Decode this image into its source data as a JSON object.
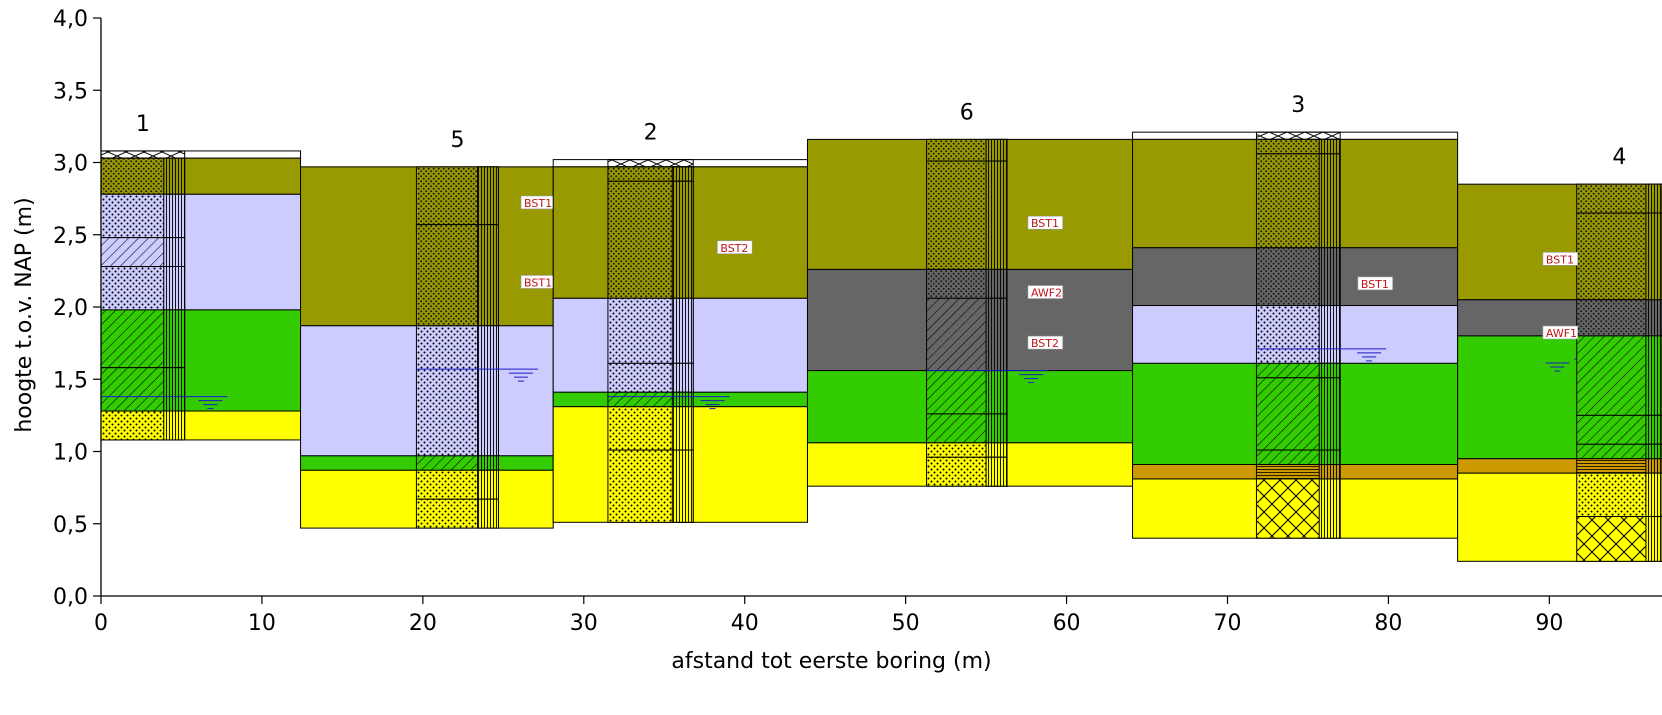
{
  "figure": {
    "xlabel": "afstand tot eerste boring (m)",
    "ylabel": "hoogte t.o.v. NAP (m)",
    "x_ticks": [
      {
        "v": 0,
        "label": "0"
      },
      {
        "v": 10,
        "label": "10"
      },
      {
        "v": 20,
        "label": "20"
      },
      {
        "v": 30,
        "label": "30"
      },
      {
        "v": 40,
        "label": "40"
      },
      {
        "v": 50,
        "label": "50"
      },
      {
        "v": 60,
        "label": "60"
      },
      {
        "v": 70,
        "label": "70"
      },
      {
        "v": 80,
        "label": "80"
      },
      {
        "v": 90,
        "label": "90"
      }
    ],
    "y_ticks": [
      {
        "v": 0.0,
        "label": "0,0"
      },
      {
        "v": 0.5,
        "label": "0,5"
      },
      {
        "v": 1.0,
        "label": "1,0"
      },
      {
        "v": 1.5,
        "label": "1,5"
      },
      {
        "v": 2.0,
        "label": "2,0"
      },
      {
        "v": 2.5,
        "label": "2,5"
      },
      {
        "v": 3.0,
        "label": "3,0"
      },
      {
        "v": 3.5,
        "label": "3,5"
      },
      {
        "v": 4.0,
        "label": "4,0"
      }
    ],
    "x_range": [
      0,
      97
    ],
    "y_range": [
      0,
      4.0
    ]
  },
  "colors": {
    "olive": "#999900",
    "lavender": "#ccccff",
    "green": "#33cc00",
    "yellow": "#ffff00",
    "gray": "#666666",
    "ochre": "#cc9900",
    "white": "#ffffff",
    "water": "#1c1cc8",
    "tag": "#c0161b"
  },
  "boreholes": [
    {
      "label": "1",
      "x0": 0,
      "x1": 12.4,
      "col_x0": 0,
      "col_x1": 5.2,
      "top": 3.08,
      "bottom": 1.08,
      "ground_ticked": true,
      "layers": [
        {
          "top": 3.08,
          "bottom": 3.03,
          "color": "white"
        },
        {
          "top": 3.03,
          "bottom": 2.78,
          "color": "olive"
        },
        {
          "top": 2.78,
          "bottom": 1.98,
          "color": "lavender"
        },
        {
          "top": 1.98,
          "bottom": 1.28,
          "color": "green"
        },
        {
          "top": 1.28,
          "bottom": 1.08,
          "color": "yellow"
        }
      ],
      "column_layers": [
        {
          "top": 3.03,
          "bottom": 2.78,
          "color": "olive",
          "pattern": "dots-dark"
        },
        {
          "top": 2.78,
          "bottom": 2.48,
          "color": "lavender",
          "pattern": "dots"
        },
        {
          "top": 2.48,
          "bottom": 2.28,
          "color": "lavender",
          "pattern": "hatch"
        },
        {
          "top": 2.28,
          "bottom": 1.98,
          "color": "lavender",
          "pattern": "dots"
        },
        {
          "top": 1.98,
          "bottom": 1.58,
          "color": "green",
          "pattern": "hatch"
        },
        {
          "top": 1.58,
          "bottom": 1.28,
          "color": "green",
          "pattern": "hatch"
        },
        {
          "top": 1.28,
          "bottom": 1.08,
          "color": "yellow",
          "pattern": "dots"
        }
      ],
      "strip_x": [
        3.9,
        5.2
      ],
      "water_level": 1.38,
      "water_x": 6.8,
      "tags": []
    },
    {
      "label": "5",
      "x0": 12.4,
      "x1": 28.1,
      "col_x0": 19.6,
      "col_x1": 24.7,
      "top": 2.97,
      "bottom": 0.47,
      "ground_ticked": false,
      "layers": [
        {
          "top": 2.97,
          "bottom": 1.87,
          "color": "olive"
        },
        {
          "top": 1.87,
          "bottom": 0.97,
          "color": "lavender"
        },
        {
          "top": 0.97,
          "bottom": 0.87,
          "color": "green"
        },
        {
          "top": 0.87,
          "bottom": 0.47,
          "color": "yellow"
        }
      ],
      "column_layers": [
        {
          "top": 2.97,
          "bottom": 2.57,
          "color": "olive",
          "pattern": "dots-dark"
        },
        {
          "top": 2.57,
          "bottom": 1.87,
          "color": "olive",
          "pattern": "dots-dark"
        },
        {
          "top": 1.87,
          "bottom": 0.97,
          "color": "lavender",
          "pattern": "dots"
        },
        {
          "top": 0.97,
          "bottom": 0.87,
          "color": "green",
          "pattern": "hatch"
        },
        {
          "top": 0.87,
          "bottom": 0.67,
          "color": "yellow",
          "pattern": "dots"
        },
        {
          "top": 0.67,
          "bottom": 0.47,
          "color": "yellow",
          "pattern": "dots"
        }
      ],
      "strip_x": [
        23.4,
        24.7
      ],
      "water_level": 1.57,
      "water_x": 26.1,
      "tags": [
        {
          "text": "BST1",
          "x": 26.1,
          "y": 2.72
        },
        {
          "text": "BST1",
          "x": 26.1,
          "y": 2.17
        }
      ]
    },
    {
      "label": "2",
      "x0": 28.1,
      "x1": 43.9,
      "col_x0": 31.5,
      "col_x1": 36.8,
      "top": 3.02,
      "bottom": 0.51,
      "ground_ticked": true,
      "layers": [
        {
          "top": 3.02,
          "bottom": 2.97,
          "color": "white"
        },
        {
          "top": 2.97,
          "bottom": 2.06,
          "color": "olive"
        },
        {
          "top": 2.06,
          "bottom": 1.41,
          "color": "lavender"
        },
        {
          "top": 1.41,
          "bottom": 1.31,
          "color": "green"
        },
        {
          "top": 1.31,
          "bottom": 0.51,
          "color": "yellow"
        }
      ],
      "column_layers": [
        {
          "top": 2.97,
          "bottom": 2.87,
          "color": "olive",
          "pattern": "dots-dark"
        },
        {
          "top": 2.87,
          "bottom": 2.06,
          "color": "olive",
          "pattern": "dots-dark"
        },
        {
          "top": 2.06,
          "bottom": 1.61,
          "color": "lavender",
          "pattern": "dots"
        },
        {
          "top": 1.61,
          "bottom": 1.41,
          "color": "lavender",
          "pattern": "dots"
        },
        {
          "top": 1.41,
          "bottom": 1.31,
          "color": "green",
          "pattern": "hatch"
        },
        {
          "top": 1.31,
          "bottom": 1.01,
          "color": "yellow",
          "pattern": "dots"
        },
        {
          "top": 1.01,
          "bottom": 0.51,
          "color": "yellow",
          "pattern": "dots"
        }
      ],
      "strip_x": [
        35.5,
        36.8
      ],
      "water_level": 1.38,
      "water_x": 38.0,
      "tags": [
        {
          "text": "BST2",
          "x": 38.3,
          "y": 2.41
        }
      ]
    },
    {
      "label": "6",
      "x0": 43.9,
      "x1": 64.1,
      "col_x0": 51.3,
      "col_x1": 56.3,
      "top": 3.16,
      "bottom": 0.76,
      "ground_ticked": false,
      "layers": [
        {
          "top": 3.16,
          "bottom": 2.26,
          "color": "olive"
        },
        {
          "top": 2.26,
          "bottom": 1.56,
          "color": "gray"
        },
        {
          "top": 1.56,
          "bottom": 1.06,
          "color": "green"
        },
        {
          "top": 1.06,
          "bottom": 0.76,
          "color": "yellow"
        }
      ],
      "column_layers": [
        {
          "top": 3.16,
          "bottom": 3.01,
          "color": "olive",
          "pattern": "dots-dark"
        },
        {
          "top": 3.01,
          "bottom": 2.26,
          "color": "olive",
          "pattern": "dots-dark"
        },
        {
          "top": 2.26,
          "bottom": 2.06,
          "color": "gray",
          "pattern": "dots-dark"
        },
        {
          "top": 2.06,
          "bottom": 1.56,
          "color": "gray",
          "pattern": "hatch"
        },
        {
          "top": 1.56,
          "bottom": 1.26,
          "color": "green",
          "pattern": "hatch"
        },
        {
          "top": 1.26,
          "bottom": 1.06,
          "color": "green",
          "pattern": "hatch"
        },
        {
          "top": 1.06,
          "bottom": 0.96,
          "color": "yellow",
          "pattern": "dots"
        },
        {
          "top": 0.96,
          "bottom": 0.76,
          "color": "yellow",
          "pattern": "dots"
        }
      ],
      "strip_x": [
        55.0,
        56.3
      ],
      "water_level": 1.56,
      "water_x": 57.8,
      "tags": [
        {
          "text": "BST1",
          "x": 57.6,
          "y": 2.58
        },
        {
          "text": "AWF2",
          "x": 57.6,
          "y": 2.1
        },
        {
          "text": "BST2",
          "x": 57.6,
          "y": 1.75
        }
      ]
    },
    {
      "label": "3",
      "x0": 64.1,
      "x1": 84.3,
      "col_x0": 71.8,
      "col_x1": 77.0,
      "top": 3.21,
      "bottom": 0.4,
      "ground_ticked": true,
      "layers": [
        {
          "top": 3.21,
          "bottom": 3.16,
          "color": "white"
        },
        {
          "top": 3.16,
          "bottom": 2.41,
          "color": "olive"
        },
        {
          "top": 2.41,
          "bottom": 2.01,
          "color": "gray"
        },
        {
          "top": 2.01,
          "bottom": 1.61,
          "color": "lavender"
        },
        {
          "top": 1.61,
          "bottom": 0.91,
          "color": "green"
        },
        {
          "top": 0.91,
          "bottom": 0.81,
          "color": "ochre"
        },
        {
          "top": 0.81,
          "bottom": 0.4,
          "color": "yellow"
        }
      ],
      "column_layers": [
        {
          "top": 3.16,
          "bottom": 3.06,
          "color": "olive",
          "pattern": "dots-dark"
        },
        {
          "top": 3.06,
          "bottom": 2.41,
          "color": "olive",
          "pattern": "dots-dark"
        },
        {
          "top": 2.41,
          "bottom": 2.01,
          "color": "gray",
          "pattern": "dots-dark"
        },
        {
          "top": 2.01,
          "bottom": 1.61,
          "color": "lavender",
          "pattern": "dots"
        },
        {
          "top": 1.61,
          "bottom": 1.51,
          "color": "green",
          "pattern": "hatch"
        },
        {
          "top": 1.51,
          "bottom": 1.01,
          "color": "green",
          "pattern": "hatch"
        },
        {
          "top": 1.01,
          "bottom": 0.91,
          "color": "green",
          "pattern": "hatch"
        },
        {
          "top": 0.91,
          "bottom": 0.81,
          "color": "ochre",
          "pattern": "hlines"
        },
        {
          "top": 0.81,
          "bottom": 0.4,
          "color": "yellow",
          "pattern": "crosshatch"
        }
      ],
      "strip_x": [
        75.7,
        77.0
      ],
      "water_level": 1.71,
      "water_x": 78.8,
      "tags": [
        {
          "text": "BST1",
          "x": 78.1,
          "y": 2.16
        }
      ]
    },
    {
      "label": "4",
      "x0": 84.3,
      "x1": 97.0,
      "col_x0": 91.7,
      "col_x1": 97.0,
      "top": 2.85,
      "bottom": 0.24,
      "ground_ticked": false,
      "layers": [
        {
          "top": 2.85,
          "bottom": 2.05,
          "color": "olive"
        },
        {
          "top": 2.05,
          "bottom": 1.8,
          "color": "gray"
        },
        {
          "top": 1.8,
          "bottom": 0.95,
          "color": "green"
        },
        {
          "top": 0.95,
          "bottom": 0.85,
          "color": "ochre"
        },
        {
          "top": 0.85,
          "bottom": 0.24,
          "color": "yellow"
        }
      ],
      "column_layers": [
        {
          "top": 2.85,
          "bottom": 2.65,
          "color": "olive",
          "pattern": "dots-dark"
        },
        {
          "top": 2.65,
          "bottom": 2.05,
          "color": "olive",
          "pattern": "dots-dark"
        },
        {
          "top": 2.05,
          "bottom": 1.8,
          "color": "gray",
          "pattern": "dots-dark"
        },
        {
          "top": 1.8,
          "bottom": 1.25,
          "color": "green",
          "pattern": "hatch"
        },
        {
          "top": 1.25,
          "bottom": 1.05,
          "color": "green",
          "pattern": "hatch"
        },
        {
          "top": 1.05,
          "bottom": 0.95,
          "color": "green",
          "pattern": "hatch"
        },
        {
          "top": 0.95,
          "bottom": 0.85,
          "color": "ochre",
          "pattern": "hlines"
        },
        {
          "top": 0.85,
          "bottom": 0.55,
          "color": "yellow",
          "pattern": "dots"
        },
        {
          "top": 0.55,
          "bottom": 0.24,
          "color": "yellow",
          "pattern": "crosshatch"
        }
      ],
      "strip_x": [
        96.0,
        97.0
      ],
      "water_level": 1.64,
      "water_x": 90.5,
      "tags": [
        {
          "text": "BST1",
          "x": 89.6,
          "y": 2.33
        },
        {
          "text": "AWF1",
          "x": 89.6,
          "y": 1.82
        }
      ]
    }
  ]
}
